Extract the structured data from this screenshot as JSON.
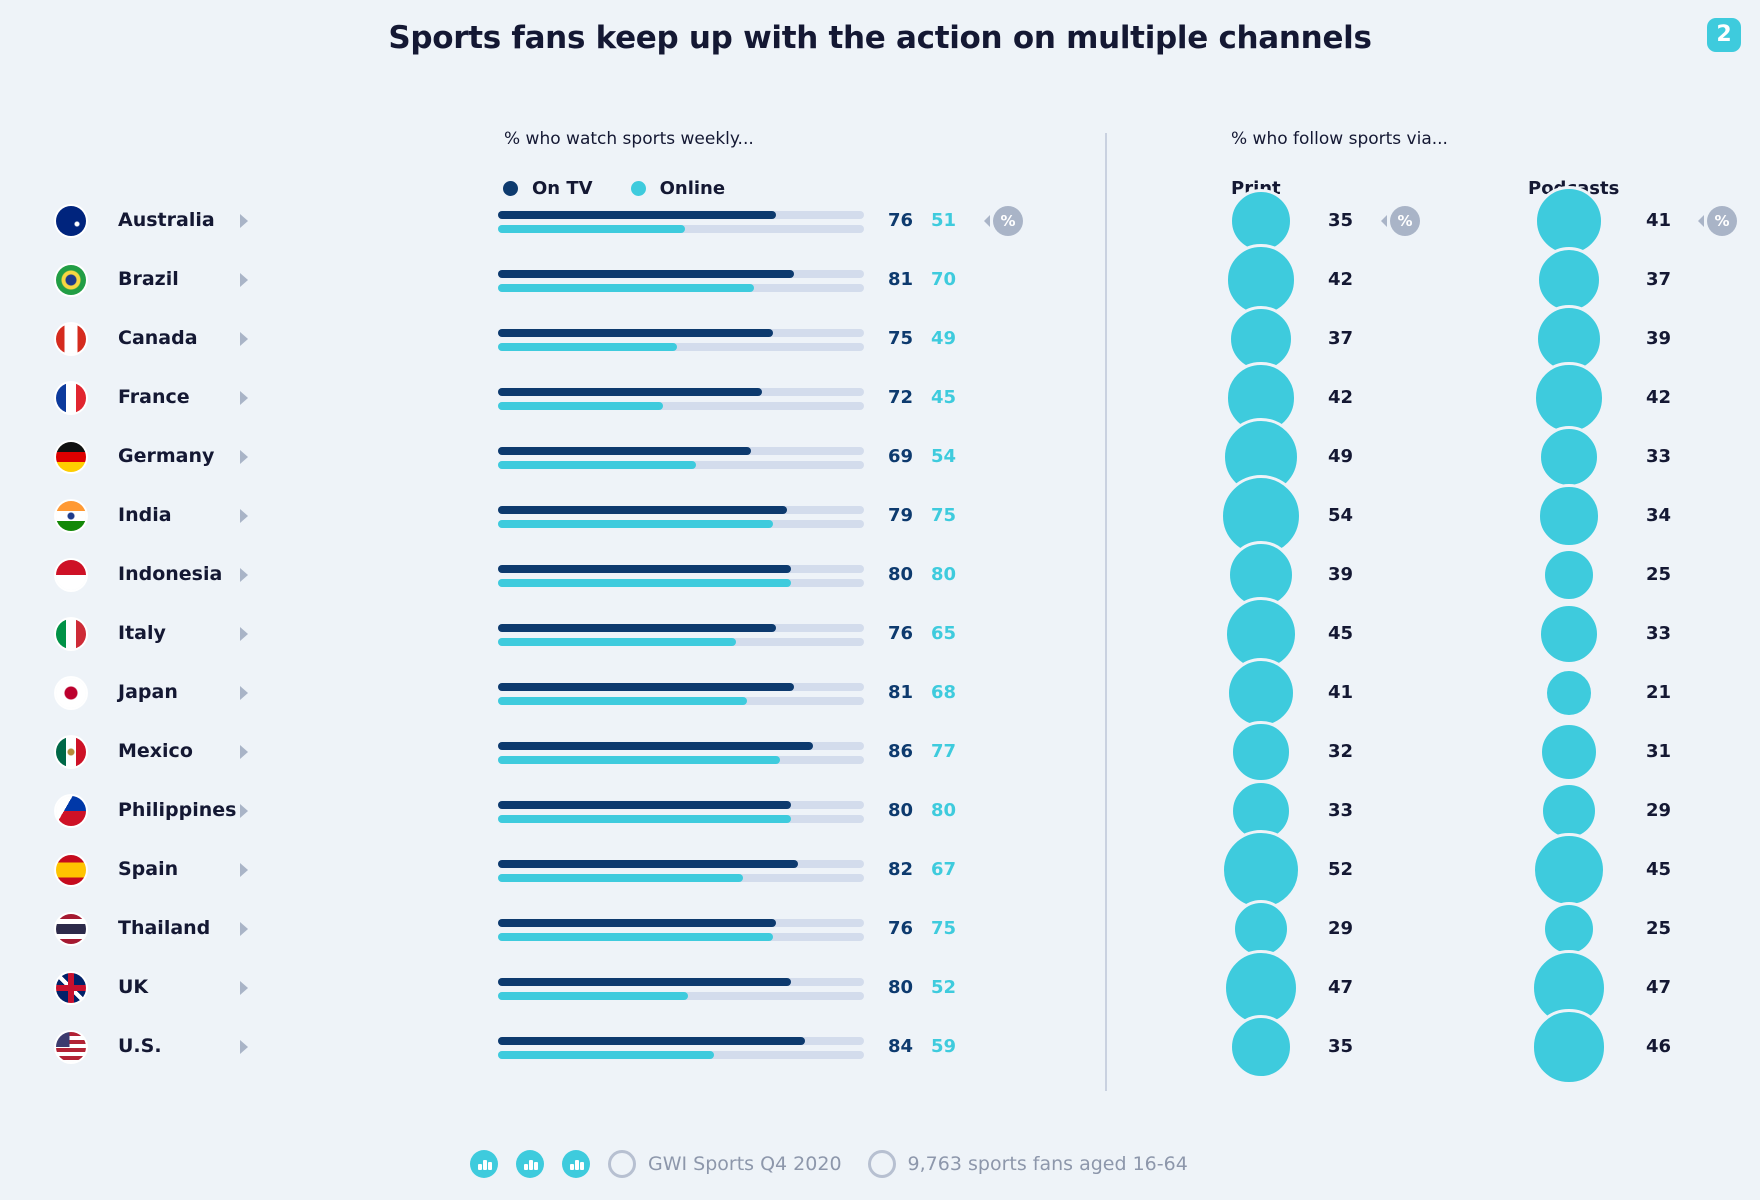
{
  "title": "Sports fans keep up with the action on multiple channels",
  "page_number": "2",
  "left_subtitle": "% who watch sports weekly...",
  "right_subtitle": "% who follow sports via...",
  "legend": [
    {
      "label": "On TV",
      "color": "#0d3a6e"
    },
    {
      "label": "Online",
      "color": "#3ecbdd"
    }
  ],
  "col_print": "Print",
  "col_podcasts": "Podcasts",
  "percent_badge": "%",
  "footer": {
    "source": "GWI Sports Q4 2020",
    "sample": "9,763 sports fans aged 16-64"
  },
  "chart_data": {
    "type": "bar",
    "categories": [
      "Australia",
      "Brazil",
      "Canada",
      "France",
      "Germany",
      "India",
      "Indonesia",
      "Italy",
      "Japan",
      "Mexico",
      "Philippines",
      "Spain",
      "Thailand",
      "UK",
      "U.S."
    ],
    "xlim": [
      0,
      100
    ],
    "series": [
      {
        "name": "On TV",
        "values": [
          76,
          81,
          75,
          72,
          69,
          79,
          80,
          76,
          81,
          86,
          80,
          82,
          76,
          80,
          84
        ]
      },
      {
        "name": "Online",
        "values": [
          51,
          70,
          49,
          45,
          54,
          75,
          80,
          65,
          68,
          77,
          80,
          67,
          75,
          52,
          59
        ]
      },
      {
        "name": "Print",
        "values": [
          35,
          42,
          37,
          42,
          49,
          54,
          39,
          45,
          41,
          32,
          33,
          52,
          29,
          47,
          35
        ]
      },
      {
        "name": "Podcasts",
        "values": [
          41,
          37,
          39,
          42,
          33,
          34,
          25,
          33,
          21,
          31,
          29,
          45,
          25,
          47,
          46
        ]
      }
    ]
  }
}
